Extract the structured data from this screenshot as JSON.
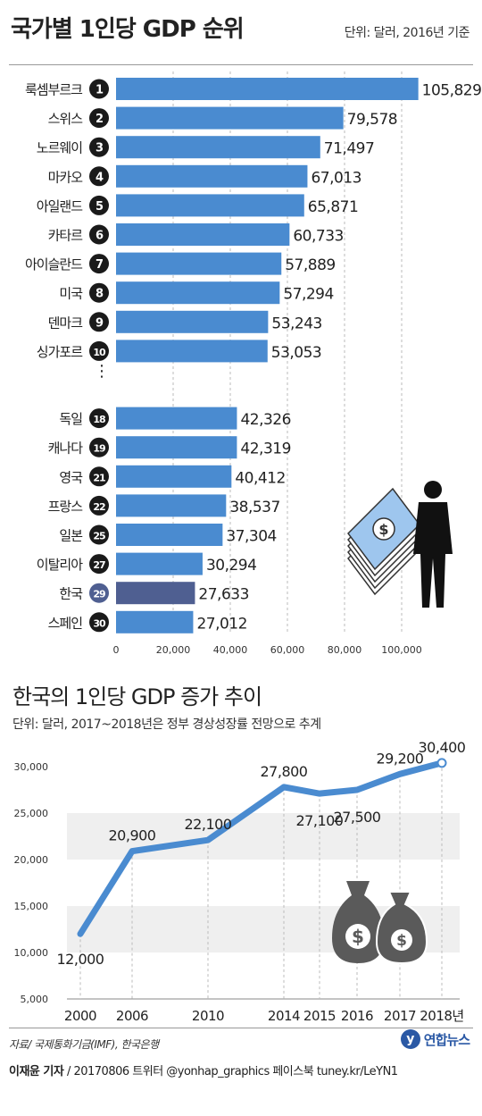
{
  "header": {
    "title": "국가별 1인당 GDP 순위",
    "unit": "단위: 달러, 2016년 기준"
  },
  "section2": {
    "title": "한국의 1인당 GDP 증가 추이",
    "unit": "단위: 달러, 2017~2018년은 정부 경상성장률 전망으로 추계"
  },
  "footer": {
    "source": "자료/ 국제통화기금(IMF), 한국은행",
    "reporter": "이재윤 기자",
    "credit": " / 20170806  트위터 @yonhap_graphics  페이스북 tuney.kr/LeYN1",
    "logo": "연합뉴스"
  },
  "colors": {
    "bar": "#4a8bd0",
    "highlight": "#4f5f91",
    "badge": "#1a1a1a",
    "line": "#4a8bd0"
  },
  "chart_data": [
    {
      "type": "bar",
      "orientation": "horizontal",
      "categories": [
        "룩셈부르크",
        "스위스",
        "노르웨이",
        "마카오",
        "아일랜드",
        "카타르",
        "아이슬란드",
        "미국",
        "덴마크",
        "싱가포르",
        "독일",
        "캐나다",
        "영국",
        "프랑스",
        "일본",
        "이탈리아",
        "한국",
        "스페인"
      ],
      "ranks": [
        "1",
        "2",
        "3",
        "4",
        "5",
        "6",
        "7",
        "8",
        "9",
        "10",
        "18",
        "19",
        "21",
        "22",
        "25",
        "27",
        "29",
        "30"
      ],
      "values": [
        105829,
        79578,
        71497,
        67013,
        65871,
        60733,
        57889,
        57294,
        53243,
        53053,
        42326,
        42319,
        40412,
        38537,
        37304,
        30294,
        27633,
        27012
      ],
      "highlight": "한국",
      "xlim": [
        0,
        110000
      ],
      "xticks": [
        0,
        20000,
        40000,
        60000,
        80000,
        100000
      ],
      "xtick_labels": [
        "0",
        "20,000",
        "40,000",
        "60,000",
        "80,000",
        "100,000"
      ],
      "gap_after_index": 9,
      "gap_marker": "⋮",
      "grid": "vertical dashed"
    },
    {
      "type": "line",
      "x": [
        "2000",
        "2006",
        "2010",
        "2014",
        "2015",
        "2016",
        "2017",
        "2018년"
      ],
      "values": [
        12000,
        20900,
        22100,
        27800,
        27100,
        27500,
        29200,
        30400
      ],
      "value_labels": [
        "12,000",
        "20,900",
        "22,100",
        "27,800",
        "27,100",
        "27,500",
        "29,200",
        "30,400"
      ],
      "ylim": [
        5000,
        30000
      ],
      "yticks": [
        5000,
        10000,
        15000,
        20000,
        25000,
        30000
      ],
      "ytick_labels": [
        "5,000",
        "10,000",
        "15,000",
        "20,000",
        "25,000",
        "30,000"
      ],
      "grid": "horizontal bands"
    }
  ]
}
